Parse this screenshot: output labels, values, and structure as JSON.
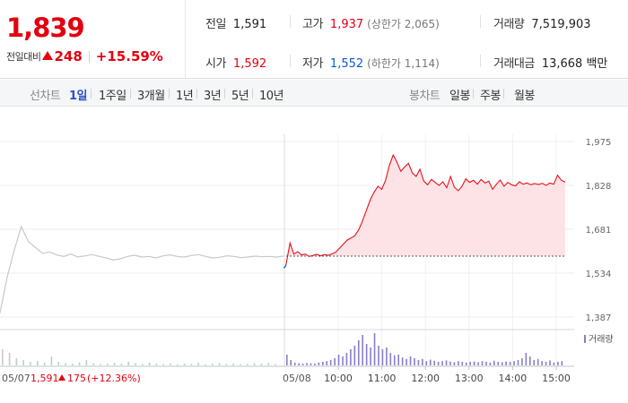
{
  "quote": {
    "price": "1,839",
    "change_label": "전일대비",
    "change_amount": "248",
    "change_percent": "+15.59%",
    "stats": {
      "prev_close": {
        "label": "전일",
        "value": "1,591"
      },
      "high": {
        "label": "고가",
        "value": "1,937",
        "limit": "(상한가 2,065)"
      },
      "volume": {
        "label": "거래량",
        "value": "7,519,903"
      },
      "open": {
        "label": "시가",
        "value": "1,592"
      },
      "low": {
        "label": "저가",
        "value": "1,552",
        "limit": "(하한가 1,114)"
      },
      "amount": {
        "label": "거래대금",
        "value": "13,668 백만"
      }
    }
  },
  "tabs": {
    "line_label": "선차트",
    "line_periods": [
      "1일",
      "1주일",
      "3개월",
      "1년",
      "3년",
      "5년",
      "10년"
    ],
    "active": "1일",
    "candle_label": "봉차트",
    "candle_periods": [
      "일봉",
      "주봉",
      "월봉"
    ]
  },
  "colors": {
    "up": "#e3000f",
    "down": "#0a58d6",
    "today_line": "#e3111b",
    "today_fill": "#fde3e6",
    "prev_line": "#c8c8c8",
    "volume_bar": "#8a7ec6",
    "volume_bar_prev": "#c9c9c9"
  },
  "chart_data": {
    "type": "line",
    "y_ticks": [
      "1,975",
      "1,828",
      "1,681",
      "1,534",
      "1,387"
    ],
    "ylim": [
      1387,
      1975
    ],
    "reference_price": 1591,
    "prev_day": {
      "date": "05/07",
      "close": "1,591",
      "change": "175",
      "change_percent": "(+12.36%)",
      "values": [
        1400,
        1520,
        1610,
        1690,
        1640,
        1620,
        1600,
        1605,
        1595,
        1590,
        1598,
        1588,
        1592,
        1596,
        1590,
        1585,
        1578,
        1582,
        1590,
        1594,
        1588,
        1590,
        1585,
        1592,
        1595,
        1590,
        1588,
        1593,
        1596,
        1590,
        1585,
        1587,
        1592,
        1590,
        1586,
        1588,
        1591,
        1589,
        1590,
        1588,
        1591
      ]
    },
    "today": {
      "date": "05/08",
      "x_ticks": [
        "10:00",
        "11:00",
        "12:00",
        "13:00",
        "14:00",
        "15:00"
      ],
      "values": [
        1565,
        1635,
        1598,
        1606,
        1595,
        1598,
        1590,
        1593,
        1597,
        1592,
        1596,
        1594,
        1598,
        1605,
        1618,
        1632,
        1645,
        1652,
        1660,
        1680,
        1710,
        1745,
        1780,
        1805,
        1825,
        1815,
        1845,
        1895,
        1930,
        1905,
        1875,
        1890,
        1902,
        1870,
        1858,
        1882,
        1842,
        1830,
        1848,
        1838,
        1828,
        1840,
        1820,
        1858,
        1822,
        1810,
        1825,
        1850,
        1838,
        1845,
        1832,
        1848,
        1836,
        1842,
        1815,
        1832,
        1846,
        1825,
        1838,
        1830,
        1826,
        1840,
        1832,
        1836,
        1830,
        1834,
        1831,
        1835,
        1828,
        1836,
        1832,
        1862,
        1845,
        1839
      ]
    },
    "volume_legend": "거래량",
    "volume": {
      "prev": [
        0.45,
        0.35,
        0.2,
        0.15,
        0.1,
        0.12,
        0.08,
        0.25,
        0.1,
        0.06,
        0.05,
        0.08,
        0.15,
        0.06,
        0.04,
        0.05,
        0.07,
        0.05,
        0.1,
        0.06,
        0.04,
        0.08,
        0.05,
        0.04,
        0.06,
        0.03,
        0.05,
        0.04,
        0.07,
        0.03,
        0.05,
        0.06,
        0.04,
        0.05,
        0.03,
        0.04,
        0.06,
        0.05,
        0.07,
        0.04
      ],
      "today": [
        0.3,
        0.15,
        0.08,
        0.06,
        0.05,
        0.07,
        0.06,
        0.05,
        0.08,
        0.1,
        0.12,
        0.15,
        0.2,
        0.3,
        0.25,
        0.35,
        0.45,
        0.55,
        0.7,
        0.85,
        0.6,
        0.5,
        0.9,
        0.55,
        0.45,
        0.5,
        0.35,
        0.28,
        0.3,
        0.22,
        0.18,
        0.25,
        0.2,
        0.15,
        0.18,
        0.12,
        0.16,
        0.13,
        0.1,
        0.12,
        0.14,
        0.11,
        0.09,
        0.12,
        0.1,
        0.08,
        0.1,
        0.11,
        0.09,
        0.12,
        0.1,
        0.08,
        0.13,
        0.1,
        0.09,
        0.11,
        0.1,
        0.12,
        0.15,
        0.2,
        0.35,
        0.25,
        0.15,
        0.18,
        0.12,
        0.1,
        0.14,
        0.08,
        0.1,
        0.12
      ]
    }
  }
}
